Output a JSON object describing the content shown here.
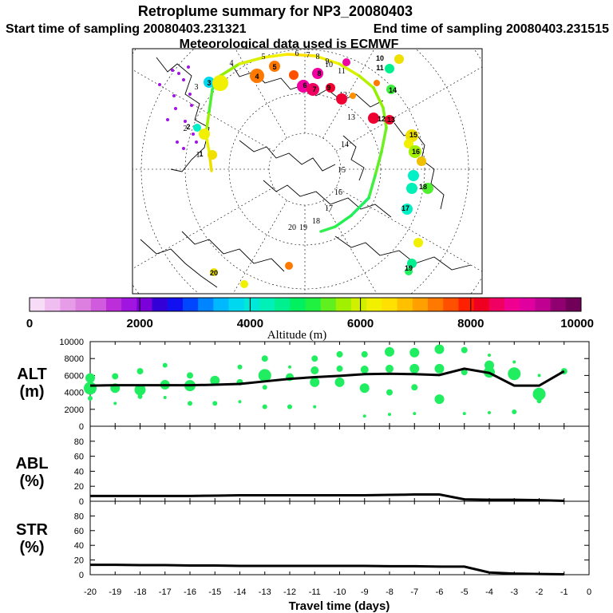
{
  "title": "Retroplume summary for NP3_20080403",
  "start_label": "Start time of sampling 20080403.231321",
  "end_label": "End time of sampling 20080403.231515",
  "met_label": "Meteorological data used is ECMWF",
  "colorbar": {
    "label": "Altitude  (m)",
    "ticks": [
      "0",
      "2000",
      "4000",
      "6000",
      "8000",
      "10000"
    ],
    "colors": [
      "#f7dcf7",
      "#efbdef",
      "#e79ce7",
      "#dc7fe0",
      "#d05cdd",
      "#bb2ed9",
      "#a015e0",
      "#7c00d8",
      "#3400d8",
      "#1010f0",
      "#0046ff",
      "#0084ff",
      "#00b8ff",
      "#00d8f0",
      "#00e8d8",
      "#00f0b8",
      "#00f090",
      "#00f060",
      "#20f040",
      "#60f020",
      "#a0f000",
      "#d0f000",
      "#f0f000",
      "#ffe000",
      "#ffc000",
      "#ffa000",
      "#ff7800",
      "#ff5000",
      "#ff2000",
      "#f00020",
      "#f00060",
      "#f00090",
      "#e000a0",
      "#c00090",
      "#900070",
      "#700058"
    ]
  },
  "map": {
    "track_point_labels": [
      "1",
      "2",
      "3",
      "4",
      "5",
      "6",
      "7",
      "8",
      "9",
      "10",
      "11",
      "12",
      "13",
      "14",
      "15",
      "16",
      "17",
      "18",
      "19",
      "20"
    ],
    "cluster_labels": [
      "1",
      "2",
      "3",
      "4",
      "5",
      "6",
      "7",
      "8",
      "9",
      "10",
      "11",
      "12",
      "13",
      "14",
      "15",
      "16",
      "17",
      "18",
      "19",
      "20"
    ]
  },
  "chart_data": [
    {
      "type": "scatter",
      "name": "ALT",
      "ylabel": "ALT\n(m)",
      "ylabel_lines": [
        "ALT",
        "(m)"
      ],
      "ylim": [
        0,
        10000
      ],
      "yticks": [
        "0",
        "2000",
        "4000",
        "6000",
        "8000",
        "10000"
      ],
      "line": {
        "x": [
          -20,
          -19,
          -18,
          -17,
          -16,
          -15,
          -14,
          -13,
          -12,
          -11,
          -10,
          -9,
          -8,
          -7,
          -6,
          -5,
          -4,
          -3,
          -2,
          -1
        ],
        "y": [
          4800,
          4850,
          4850,
          4850,
          4850,
          4900,
          5000,
          5300,
          5600,
          5800,
          5950,
          6150,
          6200,
          6150,
          6050,
          6800,
          6300,
          4800,
          4800,
          6500
        ]
      },
      "clusters": {
        "x": [
          -20,
          -20,
          -20,
          -19,
          -19,
          -19,
          -18,
          -18,
          -18,
          -17,
          -17,
          -17,
          -16,
          -16,
          -16,
          -15,
          -15,
          -14,
          -14,
          -14,
          -13,
          -13,
          -13,
          -13,
          -12,
          -12,
          -12,
          -11,
          -11,
          -11,
          -11,
          -10,
          -10,
          -10,
          -9,
          -9,
          -9,
          -9,
          -8,
          -8,
          -8,
          -8,
          -7,
          -7,
          -7,
          -7,
          -6,
          -6,
          -6,
          -5,
          -5,
          -5,
          -4,
          -4,
          -4,
          -4,
          -3,
          -3,
          -3,
          -2,
          -2,
          -2,
          -1
        ],
        "y": [
          5700,
          4500,
          3300,
          5900,
          4500,
          2700,
          6500,
          4300,
          3500,
          7200,
          4900,
          3400,
          6000,
          4800,
          2700,
          5400,
          2700,
          7000,
          5200,
          2900,
          8000,
          6000,
          4600,
          2300,
          7000,
          5800,
          2300,
          8000,
          6600,
          5200,
          2300,
          8500,
          6800,
          5200,
          8500,
          6700,
          4500,
          1200,
          8800,
          6800,
          4000,
          1400,
          8700,
          6800,
          4600,
          1500,
          9100,
          6800,
          3200,
          9000,
          6400,
          1500,
          8400,
          7200,
          6400,
          1600,
          7600,
          6200,
          1700,
          6000,
          3800,
          3000,
          6500
        ],
        "size": [
          6,
          8,
          3,
          4,
          6,
          2,
          4,
          7,
          3,
          3,
          6,
          2,
          4,
          7,
          3,
          6,
          3,
          3,
          4,
          2,
          4,
          8,
          3,
          3,
          2,
          5,
          3,
          4,
          5,
          6,
          2,
          4,
          4,
          6,
          4,
          5,
          6,
          2,
          6,
          5,
          4,
          2,
          6,
          6,
          4,
          2,
          6,
          6,
          6,
          4,
          4,
          2,
          2,
          6,
          7,
          2,
          2,
          8,
          3,
          2,
          8,
          3,
          4
        ]
      },
      "color": "#20ee60"
    },
    {
      "type": "line",
      "name": "ABL",
      "ylabel": "ABL\n(%)",
      "ylabel_lines": [
        "ABL",
        "(%)"
      ],
      "ylim": [
        0,
        100
      ],
      "yticks": [
        "0",
        "20",
        "40",
        "60",
        "80"
      ],
      "x": [
        -20,
        -19,
        -18,
        -17,
        -16,
        -15,
        -14,
        -13,
        -12,
        -11,
        -10,
        -9,
        -8,
        -7,
        -6,
        -5,
        -4,
        -3,
        -2,
        -1
      ],
      "y": [
        7,
        7,
        7,
        7,
        7,
        7.5,
        8,
        8,
        8,
        8,
        8,
        8,
        8.5,
        9,
        9,
        2.5,
        2,
        2,
        1.5,
        0.5
      ]
    },
    {
      "type": "line",
      "name": "STR",
      "ylabel": "STR\n(%)",
      "ylabel_lines": [
        "STR",
        "(%)"
      ],
      "ylim": [
        0,
        100
      ],
      "yticks": [
        "0",
        "20",
        "40",
        "60",
        "80"
      ],
      "x": [
        -20,
        -19,
        -18,
        -17,
        -16,
        -15,
        -14,
        -13,
        -12,
        -11,
        -10,
        -9,
        -8,
        -7,
        -6,
        -5,
        -4,
        -3,
        -2,
        -1
      ],
      "y": [
        13.5,
        13.5,
        13,
        13,
        12.5,
        12.5,
        12,
        12,
        12,
        12,
        12,
        12,
        11.5,
        11.5,
        11,
        11,
        3,
        1.5,
        1,
        0.5
      ],
      "xlabel": "Travel time (days)",
      "xticks": [
        "-20",
        "-19",
        "-18",
        "-17",
        "-16",
        "-15",
        "-14",
        "-13",
        "-12",
        "-11",
        "-10",
        "-9",
        "-8",
        "-7",
        "-6",
        "-5",
        "-4",
        "-3",
        "-2",
        "-1",
        "0"
      ]
    }
  ]
}
